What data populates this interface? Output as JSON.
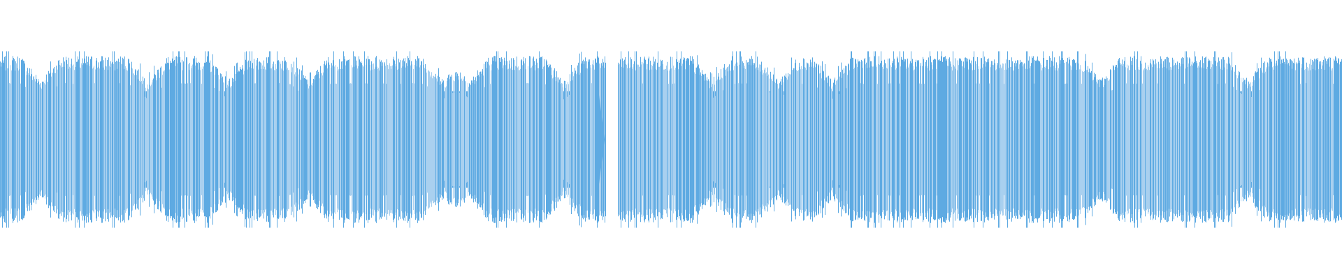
{
  "waveform": {
    "color": "#5eaae2",
    "light_color": "#a9d0ef",
    "background": "#ffffff",
    "segments": [
      {
        "name": "segment-1",
        "start": 0.0,
        "end": 0.4515,
        "envelope_peak": 0.98,
        "body_level": 0.68,
        "quiet_dips": [
          0.03,
          0.11,
          0.17,
          0.23,
          0.33,
          0.35,
          0.42
        ]
      },
      {
        "name": "segment-2",
        "start": 0.4605,
        "end": 1.0,
        "envelope_peak": 0.98,
        "body_level": 0.68,
        "quiet_dips": [
          0.53,
          0.58,
          0.62,
          0.82,
          0.93
        ]
      }
    ],
    "gap": {
      "start": 0.4515,
      "end": 0.4605
    }
  }
}
